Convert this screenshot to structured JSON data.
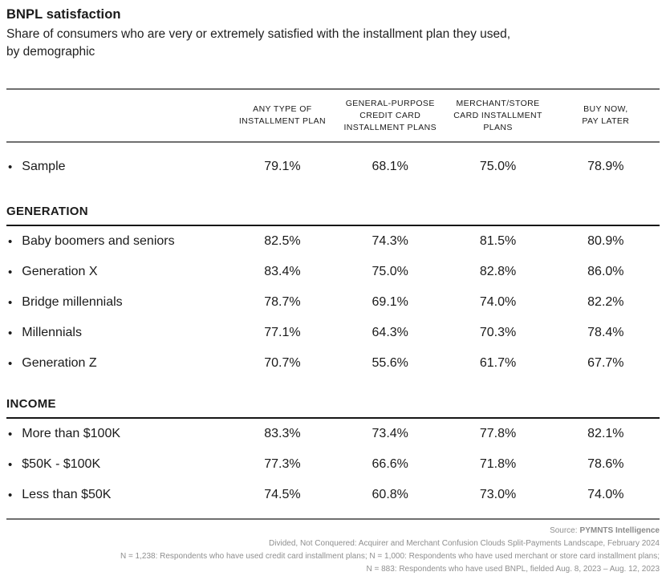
{
  "header": {
    "title": "BNPL satisfaction",
    "subtitle": "Share of consumers who are very or extremely satisfied with the installment plan they used,\nby demographic"
  },
  "table": {
    "bullet": "•",
    "columns": [
      "ANY TYPE OF\nINSTALLMENT PLAN",
      "GENERAL-PURPOSE\nCREDIT CARD\nINSTALLMENT PLANS",
      "MERCHANT/STORE\nCARD INSTALLMENT\nPLANS",
      "BUY NOW,\nPAY LATER"
    ],
    "sample_row": {
      "label": "Sample",
      "values": [
        "79.1%",
        "68.1%",
        "75.0%",
        "78.9%"
      ]
    },
    "sections": [
      {
        "name": "GENERATION",
        "rows": [
          {
            "label": "Baby boomers and seniors",
            "values": [
              "82.5%",
              "74.3%",
              "81.5%",
              "80.9%"
            ]
          },
          {
            "label": "Generation X",
            "values": [
              "83.4%",
              "75.0%",
              "82.8%",
              "86.0%"
            ]
          },
          {
            "label": "Bridge millennials",
            "values": [
              "78.7%",
              "69.1%",
              "74.0%",
              "82.2%"
            ]
          },
          {
            "label": "Millennials",
            "values": [
              "77.1%",
              "64.3%",
              "70.3%",
              "78.4%"
            ]
          },
          {
            "label": "Generation Z",
            "values": [
              "70.7%",
              "55.6%",
              "61.7%",
              "67.7%"
            ]
          }
        ]
      },
      {
        "name": "INCOME",
        "rows": [
          {
            "label": "More than $100K",
            "values": [
              "83.3%",
              "73.4%",
              "77.8%",
              "82.1%"
            ]
          },
          {
            "label": "$50K - $100K",
            "values": [
              "77.3%",
              "66.6%",
              "71.8%",
              "78.6%"
            ]
          },
          {
            "label": "Less than $50K",
            "values": [
              "74.5%",
              "60.8%",
              "73.0%",
              "74.0%"
            ]
          }
        ]
      }
    ]
  },
  "footer": {
    "source_label": "Source:",
    "source_name": "PYMNTS Intelligence",
    "line2": "Divided, Not Conquered: Acquirer and Merchant Confusion Clouds Split-Payments Landscape, February 2024",
    "line3": "N = 1,238: Respondents who have used credit card installment plans; N = 1,000: Respondents who have used merchant or store card installment plans;",
    "line4": "N = 883: Respondents who have used BNPL, fielded Aug. 8, 2023 – Aug. 12, 2023"
  },
  "colors": {
    "text": "#1a1a1a",
    "rule_gray": "#6f6f6f",
    "rule_dark": "#161616",
    "footer_text": "#8f8f8f",
    "background": "#ffffff"
  },
  "chart_data": {
    "type": "table",
    "title": "BNPL satisfaction",
    "subtitle": "Share of consumers who are very or extremely satisfied with the installment plan they used, by demographic",
    "unit": "%",
    "columns": [
      "Any type of installment plan",
      "General-purpose credit card installment plans",
      "Merchant/store card installment plans",
      "Buy now, pay later"
    ],
    "rows": [
      {
        "group": "Sample",
        "label": "Sample",
        "values": [
          79.1,
          68.1,
          75.0,
          78.9
        ]
      },
      {
        "group": "Generation",
        "label": "Baby boomers and seniors",
        "values": [
          82.5,
          74.3,
          81.5,
          80.9
        ]
      },
      {
        "group": "Generation",
        "label": "Generation X",
        "values": [
          83.4,
          75.0,
          82.8,
          86.0
        ]
      },
      {
        "group": "Generation",
        "label": "Bridge millennials",
        "values": [
          78.7,
          69.1,
          74.0,
          82.2
        ]
      },
      {
        "group": "Generation",
        "label": "Millennials",
        "values": [
          77.1,
          64.3,
          70.3,
          78.4
        ]
      },
      {
        "group": "Generation",
        "label": "Generation Z",
        "values": [
          70.7,
          55.6,
          61.7,
          67.7
        ]
      },
      {
        "group": "Income",
        "label": "More than $100K",
        "values": [
          83.3,
          73.4,
          77.8,
          82.1
        ]
      },
      {
        "group": "Income",
        "label": "$50K - $100K",
        "values": [
          77.3,
          66.6,
          71.8,
          78.6
        ]
      },
      {
        "group": "Income",
        "label": "Less than $50K",
        "values": [
          74.5,
          60.8,
          73.0,
          74.0
        ]
      }
    ]
  }
}
